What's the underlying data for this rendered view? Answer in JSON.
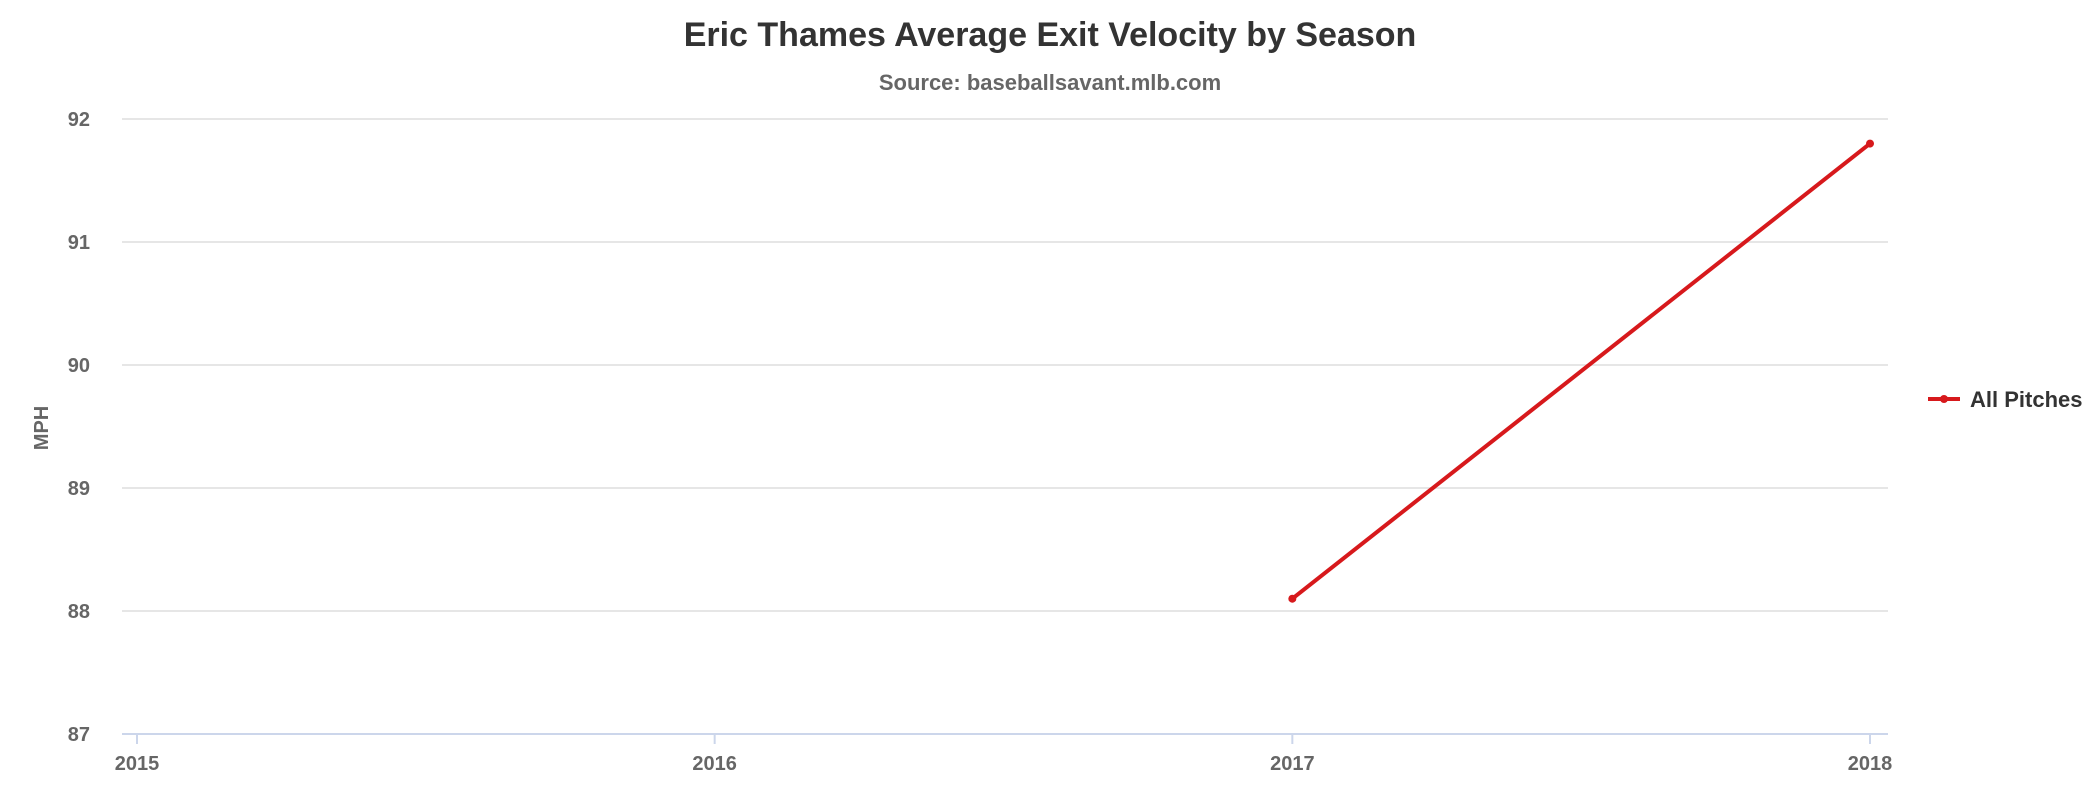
{
  "chart_data": {
    "type": "line",
    "title": "Eric Thames Average Exit Velocity by Season",
    "subtitle": "Source: baseballsavant.mlb.com",
    "xlabel": "",
    "ylabel": "MPH",
    "x": [
      "2015",
      "2016",
      "2017",
      "2018"
    ],
    "y_ticks": [
      92,
      91,
      90,
      89,
      88,
      87
    ],
    "ylim": [
      87,
      92
    ],
    "grid": true,
    "legend_position": "right",
    "series": [
      {
        "name": "All Pitches",
        "color": "#d7191c",
        "points": [
          {
            "x": "2017",
            "y": 88.1
          },
          {
            "x": "2018",
            "y": 91.8
          }
        ]
      }
    ]
  }
}
